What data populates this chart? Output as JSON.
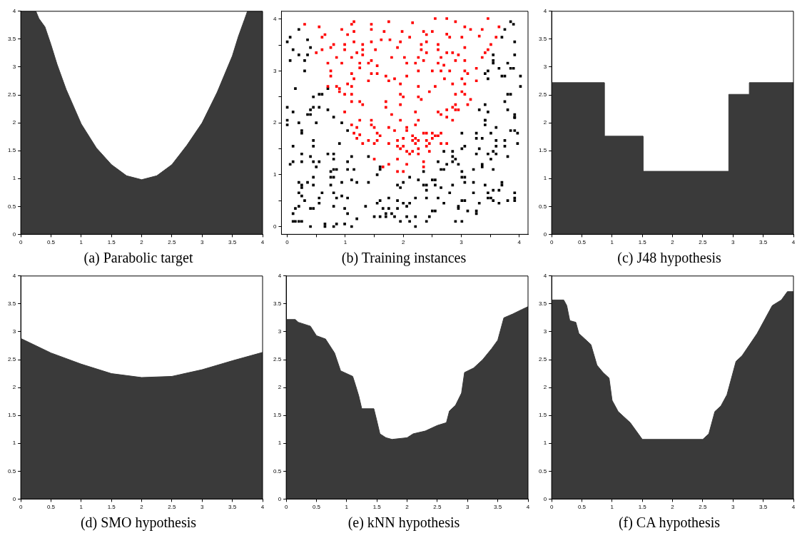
{
  "chart_data": [
    {
      "type": "area",
      "title": "(a) Parabolic target",
      "x": [
        0,
        0.25,
        0.3,
        0.4,
        0.5,
        0.6,
        0.75,
        1.0,
        1.25,
        1.5,
        1.75,
        2.0,
        2.25,
        2.5,
        2.75,
        3.0,
        3.25,
        3.5,
        3.6,
        3.7,
        3.75,
        4.0
      ],
      "series": [
        {
          "color": "#3a3a3a",
          "values": [
            4,
            4,
            3.87,
            3.72,
            3.4,
            3.05,
            2.6,
            1.98,
            1.55,
            1.25,
            1.05,
            0.98,
            1.05,
            1.25,
            1.6,
            2.0,
            2.55,
            3.2,
            3.55,
            3.85,
            4,
            4
          ]
        }
      ],
      "xlim": [
        0,
        4
      ],
      "ylim": [
        0,
        4
      ],
      "xticks": [
        0,
        0.5,
        1,
        1.5,
        2,
        2.5,
        3,
        3.5,
        4
      ],
      "yticks": [
        0,
        0.5,
        1,
        1.5,
        2,
        2.5,
        3,
        3.5,
        4
      ]
    },
    {
      "type": "scatter",
      "title": "(b) Training instances",
      "marker": "square",
      "xlim": [
        -0.1,
        4.15
      ],
      "ylim": [
        -0.15,
        4.15
      ],
      "xticks": [
        0,
        {
          "value": 0.5,
          "label": null
        },
        1,
        {
          "value": 1.5,
          "label": null
        },
        2,
        {
          "value": 2.5,
          "label": null
        },
        3,
        {
          "value": 3.5,
          "label": null
        },
        4
      ],
      "yticks": [
        0,
        {
          "value": 0.5,
          "label": null
        },
        1,
        {
          "value": 1.5,
          "label": null
        },
        2,
        {
          "value": 2.5,
          "label": null
        },
        3,
        {
          "value": 3.5,
          "label": null
        },
        4
      ],
      "series": [
        {
          "color": "#ff0000",
          "x": [
            0.3,
            0.55,
            1.11,
            1.15,
            1.45,
            1.45,
            1.75,
            2.16,
            2.55,
            2.75,
            2.9,
            3.46,
            3.65,
            0.6,
            0.65,
            0.94,
            1.04,
            1.15,
            1.67,
            1.98,
            2.35,
            2.5,
            2.75,
            3.06,
            3.16,
            3.36,
            3.31,
            3.6,
            1.62,
            1.77,
            1.95,
            2.11,
            2.4,
            2.8,
            3.01,
            0.8,
            0.99,
            1.15,
            1.3,
            1.45,
            2.31,
            2.4,
            2.6,
            3.51,
            0.6,
            0.5,
            0.75,
            0.99,
            1.2,
            1.3,
            1.3,
            1.52,
            1.9,
            2.31,
            2.4,
            2.6,
            2.75,
            2.85,
            3.06,
            3.41,
            3.46,
            0.85,
            1.11,
            1.8,
            2.02,
            2.26,
            2.65,
            2.95,
            3.36,
            0.7,
            0.94,
            1.25,
            1.4,
            1.45,
            1.55,
            2.06,
            2.21,
            2.35,
            2.6,
            2.7,
            2.9,
            3.06,
            0.75,
            1.25,
            2.26,
            2.5,
            2.65,
            2.8,
            3.06,
            3.26,
            0.75,
            1.11,
            1.15,
            1.45,
            1.55,
            1.7,
            1.85,
            2.06,
            2.71,
            3.01,
            3.11,
            1.04,
            1.4,
            1.75,
            1.95,
            2.85,
            3.06,
            3.26,
            0.7,
            0.85,
            0.9,
            1.11,
            2.26,
            2.55,
            2.45,
            0.9,
            0.99,
            1.11,
            1.95,
            2.0,
            2.26,
            2.31,
            2.9,
            3.01,
            3.06,
            3.16,
            1.11,
            1.25,
            1.3,
            1.7,
            1.95,
            2.9,
            3.11,
            2.85,
            0.99,
            1.7,
            1.8,
            2.21,
            2.6,
            2.65,
            2.75,
            2.75,
            2.9,
            2.95,
            1.25,
            1.45,
            1.95,
            2.26,
            2.85,
            1.11,
            1.45,
            1.2,
            1.5,
            1.75,
            2.06,
            2.21,
            1.85,
            2.06,
            1.15,
            1.25,
            1.55,
            1.2,
            1.6,
            1.4,
            1.3,
            1.5,
            1.55,
            1.75,
            1.9,
            2.0,
            2.16,
            2.16,
            2.21,
            2.26,
            2.21,
            2.35,
            2.4,
            2.5,
            2.55,
            2.6,
            2.65,
            2.4,
            2.45,
            2.5,
            2.65,
            2.75,
            1.9,
            2.0,
            1.95,
            2.4,
            2.26,
            2.06,
            2.11,
            2.16,
            2.26,
            2.45,
            1.5,
            1.9,
            2.35,
            1.75,
            2.06,
            1.65,
            2.35,
            1.9,
            2.0
          ],
          "values": [
            3.9,
            3.85,
            3.9,
            3.95,
            3.9,
            3.8,
            3.95,
            3.93,
            4.01,
            4.01,
            3.95,
            4.01,
            3.85,
            3.65,
            3.7,
            3.8,
            3.7,
            3.76,
            3.76,
            3.76,
            3.76,
            3.76,
            3.71,
            3.85,
            3.8,
            3.8,
            3.67,
            3.65,
            3.6,
            3.6,
            3.56,
            3.65,
            3.7,
            3.65,
            3.65,
            3.51,
            3.51,
            3.56,
            3.51,
            3.56,
            3.51,
            3.56,
            3.51,
            3.51,
            3.41,
            3.35,
            3.45,
            3.41,
            3.35,
            3.41,
            3.31,
            3.41,
            3.45,
            3.41,
            3.35,
            3.41,
            3.35,
            3.35,
            3.45,
            3.35,
            3.41,
            3.26,
            3.26,
            3.26,
            3.26,
            3.26,
            3.26,
            3.31,
            3.26,
            3.15,
            3.15,
            3.15,
            3.15,
            3.2,
            3.1,
            3.15,
            3.15,
            3.2,
            3.15,
            3.11,
            3.2,
            3.2,
            3.0,
            3.06,
            3.0,
            3.0,
            3.0,
            3.0,
            3.0,
            3.05,
            2.9,
            2.95,
            2.85,
            2.95,
            2.95,
            2.9,
            2.85,
            2.9,
            2.85,
            2.85,
            2.95,
            2.75,
            2.81,
            2.81,
            2.75,
            2.75,
            2.75,
            2.81,
            2.7,
            2.7,
            2.66,
            2.7,
            2.7,
            2.7,
            2.6,
            2.6,
            2.55,
            2.55,
            2.55,
            2.5,
            2.5,
            2.45,
            2.55,
            2.6,
            2.55,
            2.45,
            2.41,
            2.41,
            2.35,
            2.41,
            2.35,
            2.35,
            2.35,
            2.3,
            2.21,
            2.3,
            2.16,
            2.21,
            2.21,
            2.16,
            2.25,
            2.11,
            2.25,
            2.25,
            2.05,
            2.05,
            2.05,
            2.05,
            2.05,
            1.96,
            1.96,
            1.91,
            1.91,
            1.91,
            1.91,
            1.96,
            1.85,
            1.85,
            1.8,
            1.77,
            1.8,
            1.7,
            1.75,
            1.66,
            1.6,
            1.6,
            1.66,
            1.6,
            1.66,
            1.7,
            1.75,
            1.66,
            1.7,
            1.66,
            1.6,
            1.8,
            1.8,
            1.8,
            1.75,
            1.75,
            1.8,
            1.66,
            1.6,
            1.7,
            1.6,
            1.6,
            1.55,
            1.55,
            1.5,
            1.55,
            1.5,
            1.45,
            1.4,
            1.45,
            1.4,
            1.45,
            1.3,
            1.3,
            1.25,
            1.2,
            1.2,
            1.15,
            1.15,
            1.06,
            1.06
          ]
        },
        {
          "color": "#000000",
          "x": [
            0,
            0.05,
            0.2,
            0.35,
            0.4,
            0.1,
            0.2,
            0.35,
            0.05,
            0.3,
            0.3,
            0.14,
            0.55,
            0.6,
            0.45,
            0,
            0.4,
            0.45,
            0.55,
            0.1,
            0.35,
            0.4,
            0.7,
            0.8,
            0,
            0.7,
            3.85,
            3.9,
            3.75,
            3.7,
            3.92,
            3.55,
            3.92,
            3.55,
            3.55,
            3.8,
            3.65,
            3.85,
            3.9,
            3.46,
            3.41,
            3.46,
            3.7,
            3.75,
            4.02,
            4.02,
            3.8,
            3.85,
            3.75,
            3.41,
            3.31,
            3.46,
            3.8,
            3.92,
            3.92,
            3.41,
            0,
            0.2,
            0.5,
            0.94,
            0.25,
            0.25,
            1.04,
            0.1,
            0.45,
            0.45,
            0.9,
            0.25,
            0.7,
            0.8,
            0.4,
            1.11,
            1.4,
            0.05,
            0.1,
            0.25,
            0.45,
            0.55,
            0.8,
            1.04,
            0.5,
            1.6,
            0.75,
            0.8,
            0.85,
            1.04,
            1.15,
            1.6,
            1.55,
            0.45,
            0.75,
            0.8,
            1.11,
            0.2,
            0.25,
            0.35,
            0.25,
            0.45,
            0.75,
            0.94,
            1.2,
            1.4,
            0.2,
            0.25,
            0.6,
            0.8,
            0.3,
            0.55,
            0.55,
            0.85,
            0.94,
            1.04,
            0.2,
            0.14,
            0.4,
            0.45,
            0.8,
            0.99,
            0.1,
            0.1,
            0.14,
            0.2,
            0.25,
            1.04,
            1.2,
            0.65,
            0.65,
            0.4,
            0.8,
            0.85,
            0.99,
            1.11,
            1.35,
            1.55,
            1.6,
            1.65,
            1.75,
            1.75,
            1.5,
            1.6,
            1.7,
            1.7,
            1.8,
            1.85,
            1.9,
            1.9,
            2.0,
            2.06,
            2.11,
            1.95,
            2.06,
            2.11,
            2.21,
            2.21,
            2.21,
            1.9,
            1.95,
            2.0,
            2.11,
            2.26,
            2.35,
            2.4,
            2.4,
            2.35,
            2.4,
            2.5,
            2.55,
            2.55,
            2.65,
            2.6,
            2.7,
            2.45,
            2.4,
            2.5,
            2.55,
            2.6,
            2.65,
            2.7,
            2.7,
            2.75,
            2.85,
            2.85,
            2.9,
            2.85,
            2.95,
            2.8,
            2.85,
            2.95,
            2.95,
            2.9,
            3.01,
            3.01,
            3.01,
            3.06,
            3.01,
            3.01,
            3.06,
            3.06,
            3.01,
            3.06,
            3.11,
            3.21,
            3.21,
            3.21,
            3.26,
            3.26,
            3.31,
            3.26,
            3.26,
            3.36,
            3.31,
            3.26,
            3.36,
            3.36,
            3.41,
            3.41,
            3.41,
            3.51,
            3.46,
            3.51,
            3.55,
            3.6,
            3.6,
            3.55,
            3.46,
            3.46,
            3.51,
            3.55,
            3.55,
            3.65,
            3.65,
            3.6,
            3.6,
            3.75,
            3.75,
            3.8,
            3.7,
            3.7,
            3.8,
            3.92,
            3.92,
            3.92,
            3.85,
            3.92,
            3.97,
            3.97,
            3.92
          ],
          "values": [
            3.56,
            3.65,
            3.8,
            3.6,
            3.45,
            3.41,
            3.31,
            3.31,
            3.2,
            3.2,
            3.0,
            2.66,
            2.55,
            2.55,
            2.5,
            2.3,
            2.25,
            2.3,
            2.3,
            2.21,
            2.16,
            2.16,
            2.25,
            2.11,
            2.05,
            2.66,
            3.95,
            3.9,
            3.8,
            3.65,
            3.56,
            3.31,
            3.31,
            3.2,
            3.15,
            3.15,
            3.05,
            3.05,
            3.05,
            3.0,
            2.95,
            2.85,
            2.9,
            2.9,
            2.9,
            2.7,
            2.55,
            2.55,
            2.41,
            2.35,
            2.25,
            2.21,
            2.25,
            2.16,
            2.11,
            2.05,
            1.96,
            2.0,
            2.0,
            2.0,
            1.85,
            1.8,
            1.85,
            1.55,
            1.66,
            1.55,
            1.6,
            1.4,
            1.4,
            1.4,
            1.35,
            1.35,
            1.35,
            1.2,
            1.25,
            1.25,
            1.25,
            1.25,
            1.3,
            1.25,
            1.15,
            1.15,
            1.06,
            1.1,
            1.1,
            1.1,
            1.1,
            1.1,
            1.0,
            0.95,
            0.95,
            0.95,
            0.9,
            0.85,
            0.8,
            0.85,
            0.75,
            0.8,
            0.8,
            0.85,
            0.85,
            0.85,
            0.65,
            0.59,
            0.65,
            0.65,
            0.5,
            0.55,
            0.45,
            0.55,
            0.59,
            0.55,
            0.39,
            0.35,
            0.35,
            0.35,
            0.39,
            0.35,
            0.25,
            0.1,
            0.1,
            0.1,
            0.1,
            0.25,
            0.15,
            0.05,
            0.0,
            0.0,
            0.0,
            0.05,
            0.05,
            0.0,
            0.39,
            0.45,
            0.5,
            0.35,
            0.55,
            0.35,
            0.19,
            0.19,
            0.19,
            0.25,
            0.25,
            0.19,
            0.5,
            0.35,
            0.45,
            0.39,
            0.45,
            0.1,
            0.19,
            0.1,
            0.19,
            0.0,
            0.55,
            0.8,
            0.75,
            0.85,
            0.95,
            0.9,
            0.8,
            0.8,
            0.7,
            1.06,
            0.55,
            0.9,
            0.9,
            0.8,
            0.75,
            0.55,
            0.45,
            0.19,
            0.1,
            0.3,
            0.3,
            1.25,
            1.1,
            1.45,
            1.1,
            1.2,
            1.45,
            1.35,
            1.3,
            1.25,
            1.2,
            0.65,
            0.8,
            0.39,
            0.35,
            0.1,
            0.1,
            1.8,
            1.5,
            1.55,
            1.06,
            0.95,
            0.95,
            0.85,
            0.5,
            0.5,
            0.3,
            1.1,
            0.85,
            0.65,
            0.3,
            0.25,
            0.45,
            1.8,
            1.7,
            1.7,
            1.5,
            1.4,
            1.2,
            1.15,
            0.8,
            2.05,
            1.96,
            1.8,
            1.4,
            1.3,
            1.45,
            1.4,
            1.91,
            1.1,
            0.65,
            0.55,
            0.55,
            0.5,
            0.7,
            0.7,
            0.45,
            1.66,
            1.55,
            1.66,
            1.55,
            1.35,
            0.85,
            0.8,
            0.5,
            0.65,
            0.55,
            0.5,
            1.85,
            1.85,
            1.8,
            1.6,
            2.1
          ]
        }
      ]
    },
    {
      "type": "area",
      "title": "(c) J48 hypothesis",
      "x": [
        0,
        0.87,
        0.87,
        1.51,
        1.51,
        2.93,
        2.93,
        3.27,
        3.27,
        4
      ],
      "series": [
        {
          "color": "#3a3a3a",
          "values": [
            2.72,
            2.72,
            1.76,
            1.76,
            1.13,
            1.13,
            2.51,
            2.51,
            2.72,
            2.72
          ]
        }
      ],
      "xlim": [
        0,
        4
      ],
      "ylim": [
        0,
        4
      ],
      "xticks": [
        0,
        0.5,
        1,
        1.5,
        2,
        2.5,
        3,
        3.5,
        4
      ],
      "yticks": [
        0,
        0.5,
        1,
        1.5,
        2,
        2.5,
        3,
        3.5,
        4
      ]
    },
    {
      "type": "area",
      "title": "(d) SMO hypothesis",
      "x": [
        0,
        0.5,
        1,
        1.5,
        2,
        2.5,
        3,
        3.5,
        4
      ],
      "series": [
        {
          "color": "#3a3a3a",
          "values": [
            2.88,
            2.62,
            2.42,
            2.25,
            2.18,
            2.2,
            2.32,
            2.48,
            2.63
          ]
        }
      ],
      "xlim": [
        0,
        4
      ],
      "ylim": [
        0,
        4
      ],
      "xticks": [
        0,
        0.5,
        1,
        1.5,
        2,
        2.5,
        3,
        3.5,
        4
      ],
      "yticks": [
        0,
        0.5,
        1,
        1.5,
        2,
        2.5,
        3,
        3.5,
        4
      ]
    },
    {
      "type": "area",
      "title": "(e) kNN hypothesis",
      "x": [
        0,
        0.15,
        0.2,
        0.4,
        0.5,
        0.65,
        0.8,
        0.9,
        1.1,
        1.15,
        1.2,
        1.25,
        1.45,
        1.5,
        1.55,
        1.65,
        1.75,
        2.0,
        2.1,
        2.3,
        2.5,
        2.65,
        2.7,
        2.8,
        2.9,
        2.95,
        3.1,
        3.25,
        3.4,
        3.5,
        3.6,
        3.75,
        3.9,
        4.0
      ],
      "series": [
        {
          "color": "#3a3a3a",
          "values": [
            3.22,
            3.22,
            3.17,
            3.1,
            2.93,
            2.87,
            2.62,
            2.3,
            2.2,
            2.03,
            1.85,
            1.62,
            1.62,
            1.4,
            1.17,
            1.1,
            1.07,
            1.1,
            1.17,
            1.22,
            1.32,
            1.37,
            1.58,
            1.68,
            1.9,
            2.27,
            2.35,
            2.5,
            2.7,
            2.85,
            3.25,
            3.32,
            3.4,
            3.45
          ]
        }
      ],
      "xlim": [
        0,
        4
      ],
      "ylim": [
        0,
        4
      ],
      "xticks": [
        0,
        0.5,
        1,
        1.5,
        2,
        2.5,
        3,
        3.5,
        4
      ],
      "yticks": [
        0,
        0.5,
        1,
        1.5,
        2,
        2.5,
        3,
        3.5,
        4
      ]
    },
    {
      "type": "area",
      "title": "(f) CA hypothesis",
      "x": [
        0,
        0.2,
        0.25,
        0.3,
        0.4,
        0.45,
        0.55,
        0.65,
        0.75,
        0.85,
        0.95,
        1.0,
        1.1,
        1.2,
        1.3,
        1.5,
        2.5,
        2.6,
        2.7,
        2.8,
        2.9,
        3.05,
        3.15,
        3.4,
        3.55,
        3.65,
        3.8,
        3.9,
        4.0
      ],
      "series": [
        {
          "color": "#3a3a3a",
          "values": [
            3.57,
            3.57,
            3.47,
            3.2,
            3.17,
            2.97,
            2.87,
            2.77,
            2.4,
            2.27,
            2.17,
            1.77,
            1.57,
            1.47,
            1.37,
            1.07,
            1.07,
            1.17,
            1.57,
            1.67,
            1.87,
            2.47,
            2.57,
            2.97,
            3.27,
            3.47,
            3.57,
            3.72,
            3.72
          ]
        }
      ],
      "xlim": [
        0,
        4
      ],
      "ylim": [
        0,
        4
      ],
      "xticks": [
        0,
        0.5,
        1,
        1.5,
        2,
        2.5,
        3,
        3.5,
        4
      ],
      "yticks": [
        0,
        0.5,
        1,
        1.5,
        2,
        2.5,
        3,
        3.5,
        4
      ]
    }
  ]
}
